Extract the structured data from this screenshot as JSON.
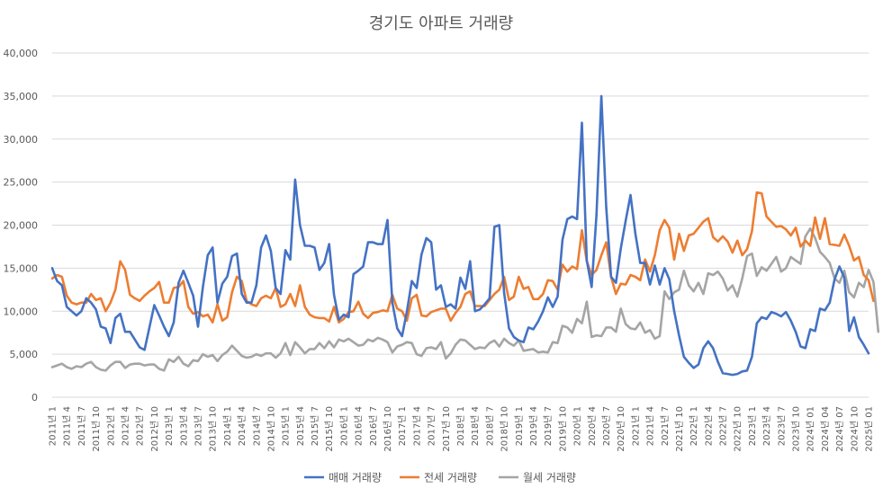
{
  "chart_data": {
    "type": "line",
    "title": "경기도 아파트 거래량",
    "xlabel": "",
    "ylabel": "",
    "ylim": [
      0,
      40000
    ],
    "yticks": [
      "0",
      "5,000",
      "10,000",
      "15,000",
      "20,000",
      "25,000",
      "30,000",
      "35,000",
      "40,000"
    ],
    "grid": true,
    "legend_position": "bottom",
    "x_start": "2011-01",
    "x_end": "2025-01",
    "tick_labels": [
      "2011년 1",
      "2011년 4",
      "2011년 7",
      "2011년 10",
      "2012년 1",
      "2012년 4",
      "2012년 7",
      "2012년 10",
      "2013년 1",
      "2013년 4",
      "2013년 7",
      "2013년 10",
      "2014년 1",
      "2014년 4",
      "2014년 7",
      "2014년 10",
      "2015년 1",
      "2015년 4",
      "2015년 7",
      "2015년 10",
      "2016년 1",
      "2016년 4",
      "2016년 7",
      "2016년 10",
      "2017년 1",
      "2017년 4",
      "2017년 7",
      "2017년 10",
      "2018년 1",
      "2018년 4",
      "2018년 7",
      "2018년 10",
      "2019년 1",
      "2019년 4",
      "2019년 7",
      "2019년 10",
      "2020년 1",
      "2020년 4",
      "2020년 7",
      "2020년 10",
      "2021년 1",
      "2021년 4",
      "2021년 7",
      "2021년 10",
      "2022년 1",
      "2022년 4",
      "2022년 7",
      "2022년 10",
      "2023년 1",
      "2023년 4",
      "2023년 7",
      "2023년 10",
      "2024년 01",
      "2024년 04",
      "2024년 07",
      "2024년 10",
      "2025년 01"
    ],
    "series": [
      {
        "name": "매매 거래량",
        "color": "#4472c4",
        "values": [
          15000,
          13500,
          13000,
          10500,
          10000,
          9500,
          10000,
          11500,
          11000,
          10200,
          8200,
          8000,
          6300,
          9200,
          9700,
          7600,
          7600,
          6700,
          5800,
          5500,
          8100,
          10700,
          9500,
          8200,
          7100,
          8700,
          13300,
          14700,
          13300,
          11800,
          8200,
          12800,
          16500,
          17400,
          11000,
          13200,
          14000,
          16400,
          16700,
          12000,
          11000,
          11000,
          13000,
          17400,
          18800,
          17000,
          12700,
          12000,
          17100,
          16000,
          25300,
          20000,
          17600,
          17600,
          17400,
          14800,
          15600,
          17800,
          11900,
          9000,
          9600,
          9300,
          14300,
          14700,
          15200,
          18000,
          18000,
          17800,
          17800,
          20600,
          11000,
          8000,
          7100,
          10000,
          13500,
          12700,
          16600,
          18500,
          18000,
          12500,
          13000,
          10500,
          10800,
          10300,
          13900,
          12600,
          15800,
          10000,
          10200,
          10800,
          11500,
          19800,
          20000,
          12100,
          8000,
          7000,
          6600,
          6400,
          8100,
          7900,
          8800,
          10000,
          11600,
          10500,
          11700,
          18300,
          20700,
          21000,
          20700,
          31900,
          15900,
          12800,
          21200,
          35000,
          22100,
          14000,
          13300,
          17300,
          20500,
          23500,
          19000,
          15600,
          15600,
          13100,
          15300,
          13100,
          15000,
          13700,
          10000,
          7200,
          4700,
          4000,
          3400,
          3800,
          5700,
          6500,
          5700,
          4100,
          2800,
          2700,
          2600,
          2700,
          3000,
          3100,
          4700,
          8600,
          9300,
          9100,
          9900,
          9700,
          9400,
          9900,
          8900,
          7600,
          5900,
          5700,
          7900,
          7700,
          10300,
          10100,
          11000,
          13700,
          15200,
          13900,
          7700,
          9300,
          7000,
          6100,
          5100
        ]
      },
      {
        "name": "전세 거래량",
        "color": "#ed7d31",
        "values": [
          13800,
          14200,
          14000,
          11800,
          11000,
          10800,
          11000,
          11000,
          12000,
          11300,
          11500,
          10000,
          11000,
          12500,
          15800,
          14800,
          11900,
          11500,
          11200,
          11800,
          12300,
          12700,
          13400,
          11000,
          11000,
          12700,
          12800,
          13500,
          10500,
          9700,
          9900,
          9400,
          9600,
          8700,
          10800,
          8900,
          9300,
          12200,
          14000,
          13500,
          11200,
          10800,
          10600,
          11500,
          11800,
          11500,
          12700,
          10500,
          10800,
          12000,
          10600,
          13000,
          10500,
          9600,
          9300,
          9200,
          9200,
          8800,
          10500,
          8700,
          9100,
          9900,
          10000,
          11100,
          9700,
          9200,
          9800,
          9900,
          10100,
          10000,
          11900,
          10300,
          10000,
          8900,
          11500,
          11900,
          9500,
          9400,
          9900,
          10100,
          10300,
          10300,
          8900,
          9800,
          10500,
          12000,
          12300,
          10600,
          10600,
          10600,
          11300,
          12000,
          12500,
          14000,
          11300,
          11700,
          14000,
          12600,
          12800,
          11400,
          11400,
          12000,
          13600,
          13500,
          12500,
          15400,
          14600,
          15200,
          14900,
          19400,
          15800,
          14200,
          14800,
          16500,
          18000,
          14000,
          12000,
          13200,
          13100,
          14200,
          14000,
          13600,
          16000,
          14600,
          16500,
          19400,
          20600,
          19700,
          16000,
          19000,
          17000,
          18800,
          19000,
          19700,
          20400,
          20800,
          18600,
          18100,
          18700,
          18100,
          16800,
          18200,
          16500,
          17200,
          19300,
          23800,
          23700,
          21000,
          20400,
          19800,
          19900,
          19500,
          18800,
          19700,
          17500,
          18200,
          17600,
          20900,
          18400,
          20800,
          17800,
          17700,
          17600,
          18900,
          17600,
          15900,
          16300,
          14200,
          13600,
          11200
        ]
      },
      {
        "name": "월세 거래량",
        "color": "#a5a5a5",
        "values": [
          3500,
          3700,
          3900,
          3500,
          3300,
          3600,
          3500,
          3900,
          4100,
          3500,
          3200,
          3100,
          3700,
          4100,
          4100,
          3400,
          3800,
          3900,
          3900,
          3700,
          3800,
          3800,
          3300,
          3100,
          4400,
          4100,
          4700,
          3900,
          3600,
          4300,
          4200,
          5000,
          4700,
          4900,
          4200,
          4900,
          5300,
          6000,
          5400,
          4800,
          4600,
          4700,
          5000,
          4800,
          5100,
          5100,
          4600,
          5100,
          6300,
          4900,
          6400,
          5800,
          5100,
          5600,
          5600,
          6300,
          5700,
          6500,
          5800,
          6700,
          6500,
          6800,
          6400,
          6000,
          6100,
          6700,
          6500,
          6900,
          6700,
          6400,
          5200,
          5900,
          6100,
          6400,
          6300,
          5000,
          4800,
          5700,
          5800,
          5600,
          6400,
          4500,
          5100,
          6100,
          6700,
          6600,
          6100,
          5600,
          5800,
          5700,
          6300,
          6600,
          5900,
          6800,
          6300,
          6000,
          6600,
          5400,
          5500,
          5600,
          5200,
          5300,
          5200,
          6400,
          6300,
          8300,
          8100,
          7500,
          9100,
          8600,
          11100,
          7000,
          7200,
          7100,
          8100,
          8100,
          7600,
          10300,
          8500,
          8000,
          7900,
          8700,
          7500,
          7800,
          6800,
          7100,
          12300,
          11400,
          12200,
          12500,
          14700,
          13000,
          12300,
          13300,
          12000,
          14400,
          14200,
          14600,
          13800,
          12400,
          13000,
          11700,
          13800,
          16400,
          16700,
          14100,
          15100,
          14700,
          15500,
          16300,
          14600,
          15000,
          16300,
          15900,
          15500,
          18700,
          19600,
          18500,
          16900,
          16300,
          15600,
          13800,
          13300,
          14700,
          12200,
          11600,
          13300,
          12800,
          14800,
          13400,
          7600
        ]
      }
    ]
  }
}
